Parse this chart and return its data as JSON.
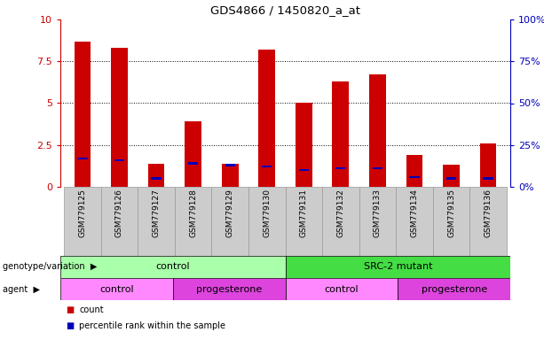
{
  "title": "GDS4866 / 1450820_a_at",
  "samples": [
    "GSM779125",
    "GSM779126",
    "GSM779127",
    "GSM779128",
    "GSM779129",
    "GSM779130",
    "GSM779131",
    "GSM779132",
    "GSM779133",
    "GSM779134",
    "GSM779135",
    "GSM779136"
  ],
  "count_values": [
    8.7,
    8.3,
    1.4,
    3.9,
    1.4,
    8.2,
    5.0,
    6.3,
    6.7,
    1.9,
    1.3,
    2.6
  ],
  "percentile_values": [
    17,
    16,
    5,
    14,
    13,
    12,
    10,
    11,
    11,
    6,
    5,
    5
  ],
  "bar_color": "#CC0000",
  "percentile_color": "#0000BB",
  "ylim_left": [
    0,
    10
  ],
  "ylim_right": [
    0,
    100
  ],
  "yticks_left": [
    0,
    2.5,
    5.0,
    7.5,
    10
  ],
  "ytick_labels_left": [
    "0",
    "2.5",
    "5",
    "7.5",
    "10"
  ],
  "yticks_right": [
    0,
    25,
    50,
    75,
    100
  ],
  "ytick_labels_right": [
    "0%",
    "25%",
    "50%",
    "75%",
    "100%"
  ],
  "genotype_groups": [
    {
      "label": "control",
      "start": 0,
      "end": 6,
      "color": "#AAFFAA"
    },
    {
      "label": "SRC-2 mutant",
      "start": 6,
      "end": 12,
      "color": "#44DD44"
    }
  ],
  "agent_groups": [
    {
      "label": "control",
      "start": 0,
      "end": 3,
      "color": "#FF88FF"
    },
    {
      "label": "progesterone",
      "start": 3,
      "end": 6,
      "color": "#DD44DD"
    },
    {
      "label": "control",
      "start": 6,
      "end": 9,
      "color": "#FF88FF"
    },
    {
      "label": "progesterone",
      "start": 9,
      "end": 12,
      "color": "#DD44DD"
    }
  ],
  "legend_count_color": "#CC0000",
  "legend_percentile_color": "#0000BB",
  "bar_width": 0.45,
  "background_color": "#ffffff",
  "tick_cell_color": "#CCCCCC",
  "left_axis_color": "#CC0000",
  "right_axis_color": "#0000BB",
  "cell_border_color": "#999999"
}
